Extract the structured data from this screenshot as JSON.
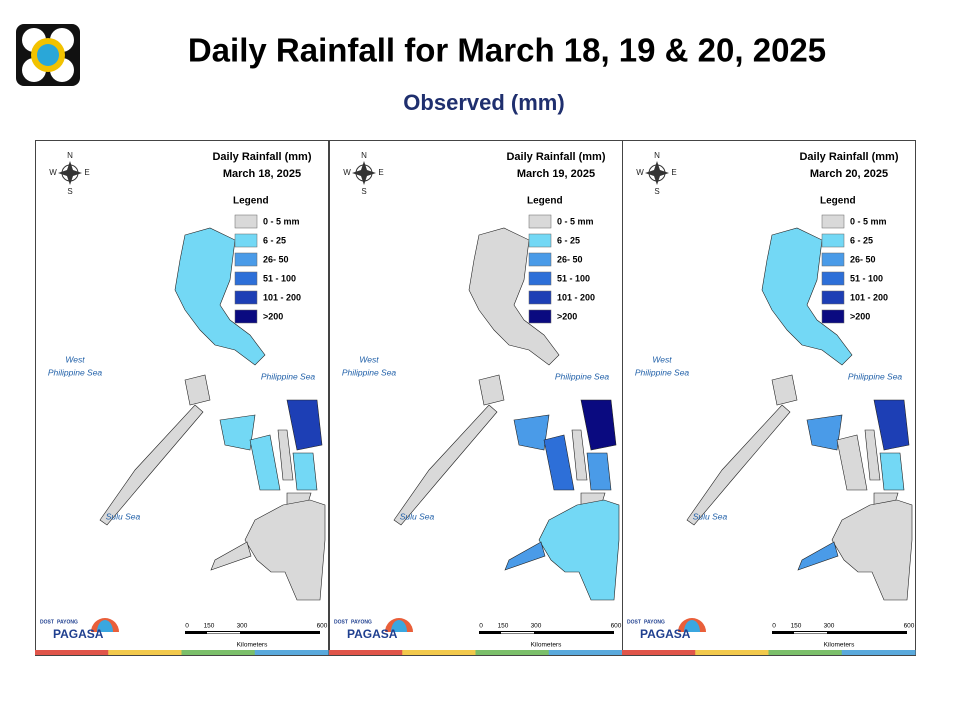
{
  "header": {
    "title": "Daily Rainfall for March 18, 19 & 20, 2025",
    "subtitle": "Observed (mm)"
  },
  "panel_heading": "Daily Rainfall (mm)",
  "panels": [
    {
      "date": "March 18, 2025"
    },
    {
      "date": "March 19, 2025"
    },
    {
      "date": "March 20, 2025"
    }
  ],
  "legend": {
    "title": "Legend",
    "items": [
      {
        "label": "0 - 5 mm",
        "color": "#d9d9d9"
      },
      {
        "label": "6 - 25",
        "color": "#73d8f5"
      },
      {
        "label": "26- 50",
        "color": "#4a9be8"
      },
      {
        "label": "51 - 100",
        "color": "#2d6fd8"
      },
      {
        "label": "101 - 200",
        "color": "#1d3fb5"
      },
      {
        "label": ">200",
        "color": "#0a0a80"
      }
    ]
  },
  "compass": {
    "n": "N",
    "e": "E",
    "s": "S",
    "w": "W"
  },
  "seas": {
    "west_1": "West",
    "west_2": "Philippine Sea",
    "east": "Philippine Sea",
    "sulu": "Sulu Sea"
  },
  "scale": {
    "ticks": [
      "0",
      "150",
      "300",
      "600"
    ],
    "unit": "Kilometers"
  },
  "logo": {
    "dost": "DOST",
    "payong": "PAYONG",
    "name": "PAGASA"
  }
}
